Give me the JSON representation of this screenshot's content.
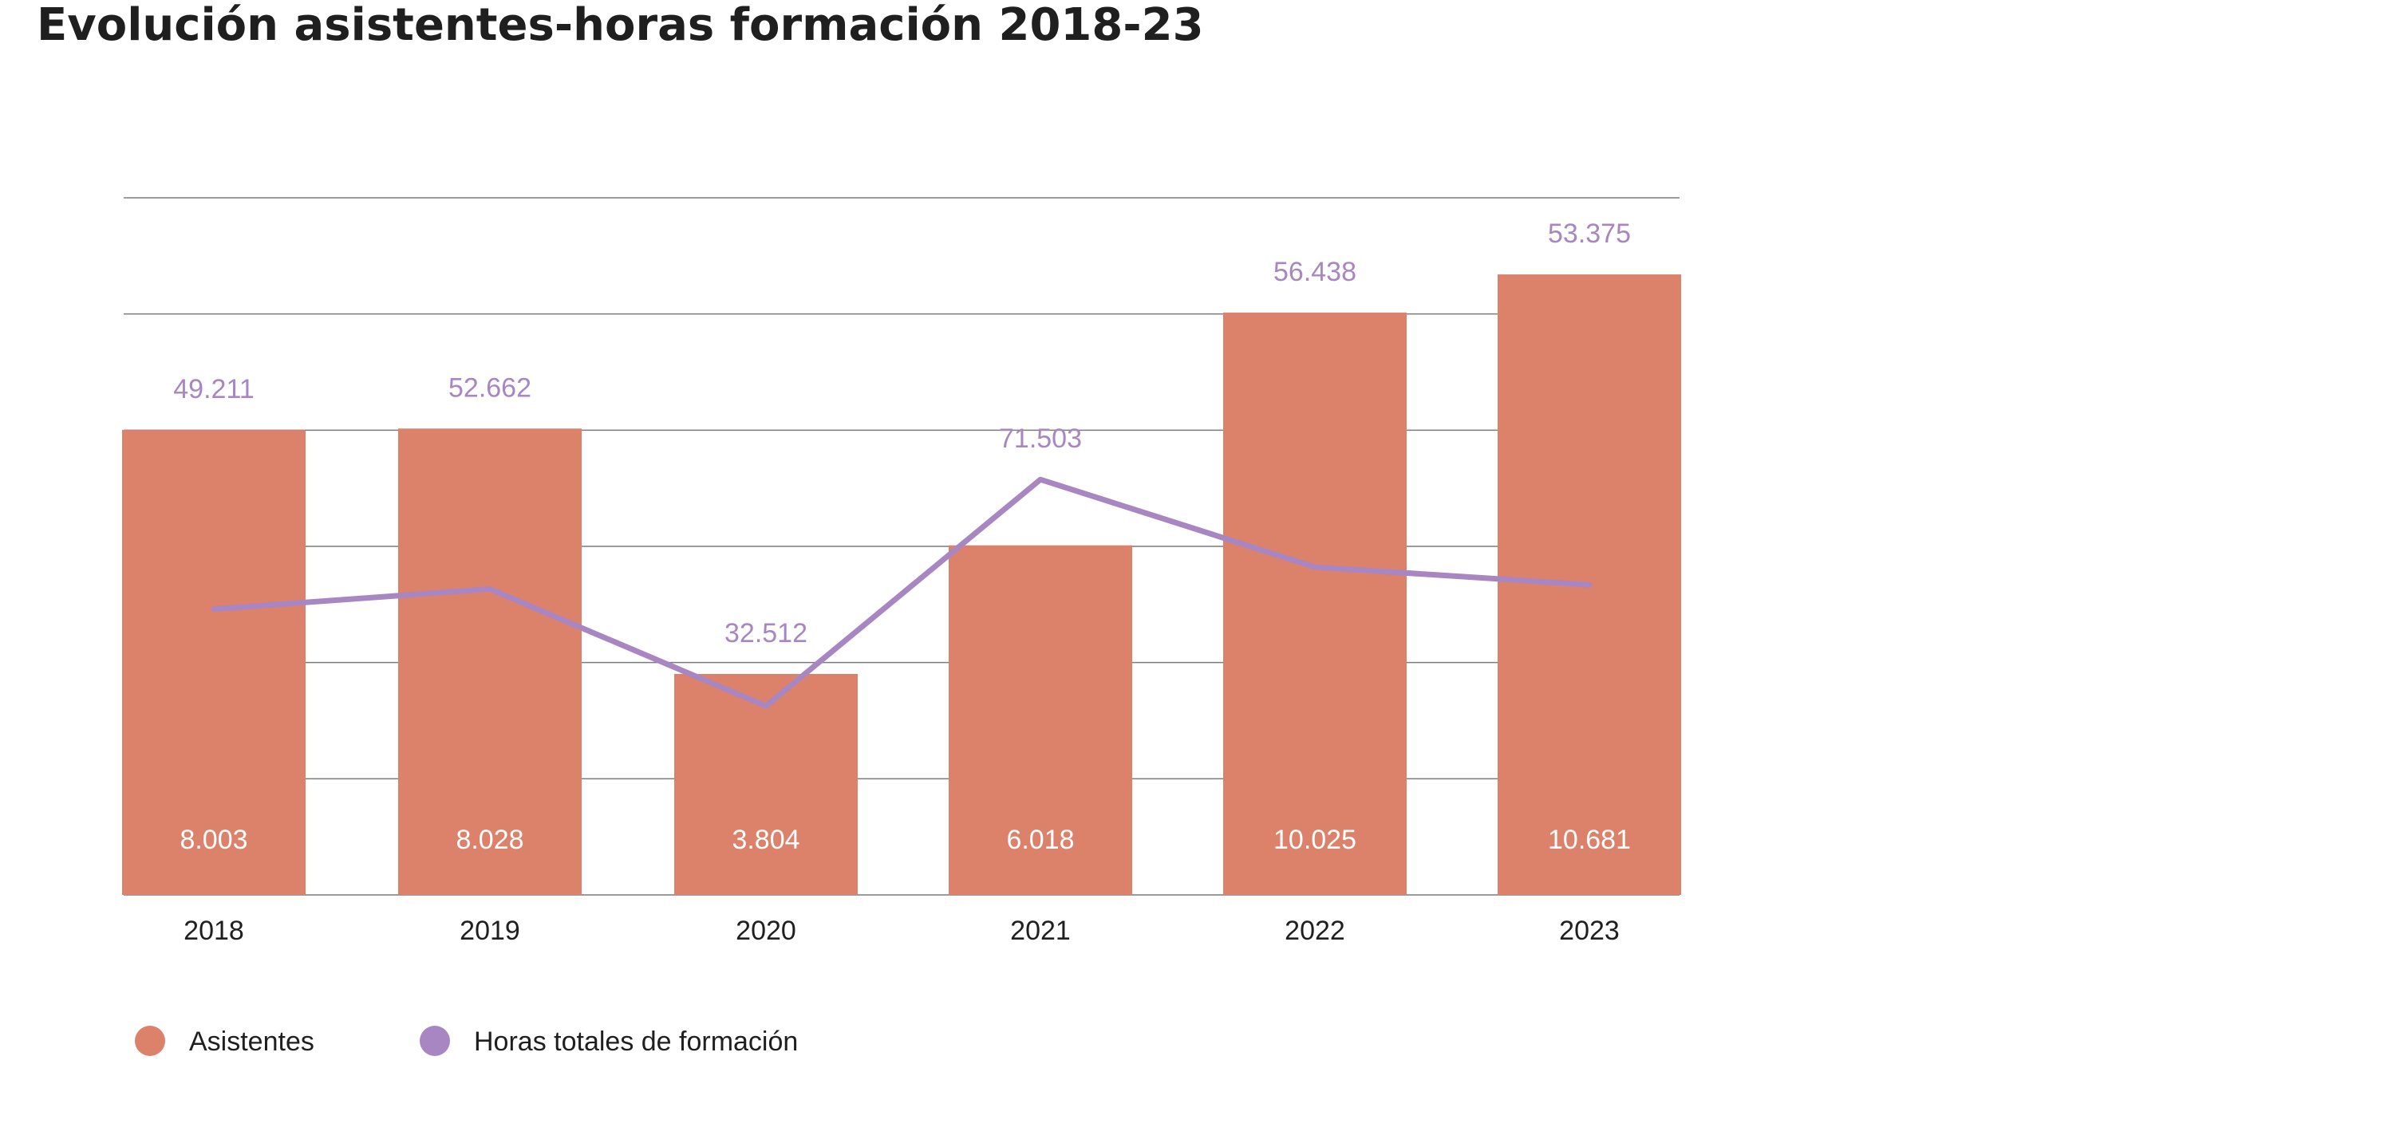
{
  "chart_data": {
    "type": "bar",
    "title": "Evolución asistentes-horas formación 2018-23",
    "categories": [
      "2018",
      "2019",
      "2020",
      "2021",
      "2022",
      "2023"
    ],
    "series": [
      {
        "name": "Asistentes",
        "type": "bar",
        "values": [
          8003,
          8028,
          3804,
          6018,
          10025,
          10681
        ],
        "labels": [
          "8.003",
          "8.028",
          "3.804",
          "6.018",
          "10.025",
          "10.681"
        ],
        "color": "#dc826a"
      },
      {
        "name": "Horas totales de formación",
        "type": "line",
        "values": [
          49211,
          52662,
          32512,
          71503,
          56438,
          53375
        ],
        "labels": [
          "49.211",
          "52.662",
          "32.512",
          "71.503",
          "56.438",
          "53.375"
        ],
        "color": "#a886c1"
      }
    ],
    "bar_axis": {
      "ylim": [
        0,
        12000
      ],
      "gridlines": [
        0,
        2000,
        4000,
        6000,
        8000,
        10000,
        12000
      ]
    },
    "line_axis": {
      "ylim": [
        0,
        120000
      ]
    },
    "legend_position": "bottom-left",
    "xlabel": "",
    "ylabel": ""
  }
}
